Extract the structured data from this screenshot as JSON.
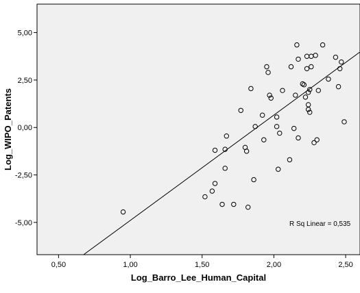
{
  "chart_data": {
    "type": "scatter",
    "xlabel": "Log_Barro_Lee_Human_Capital",
    "ylabel": "Log_WIPO_Patents",
    "xlim": [
      0.35,
      2.6
    ],
    "ylim": [
      -6.7,
      6.5
    ],
    "x_ticks": [
      {
        "value": 0.5,
        "label": "0,50"
      },
      {
        "value": 1.0,
        "label": "1,00"
      },
      {
        "value": 1.5,
        "label": "1,50"
      },
      {
        "value": 2.0,
        "label": "2,00"
      },
      {
        "value": 2.5,
        "label": "2,50"
      }
    ],
    "y_ticks": [
      {
        "value": 5.0,
        "label": "5,00"
      },
      {
        "value": 2.5,
        "label": "2,50"
      },
      {
        "value": 0.0,
        "label": "0,00"
      },
      {
        "value": -2.5,
        "label": "-2,50"
      },
      {
        "value": -5.0,
        "label": "-5,00"
      }
    ],
    "grid": false,
    "points": [
      {
        "x": 0.95,
        "y": -4.45
      },
      {
        "x": 1.52,
        "y": -3.65
      },
      {
        "x": 1.57,
        "y": -3.35
      },
      {
        "x": 1.59,
        "y": -2.95
      },
      {
        "x": 1.59,
        "y": -1.2
      },
      {
        "x": 1.64,
        "y": -4.05
      },
      {
        "x": 1.66,
        "y": -1.15
      },
      {
        "x": 1.66,
        "y": -2.15
      },
      {
        "x": 1.67,
        "y": -0.45
      },
      {
        "x": 1.72,
        "y": -4.05
      },
      {
        "x": 1.77,
        "y": 0.9
      },
      {
        "x": 1.8,
        "y": -1.05
      },
      {
        "x": 1.81,
        "y": -1.25
      },
      {
        "x": 1.82,
        "y": -4.2
      },
      {
        "x": 1.84,
        "y": 2.05
      },
      {
        "x": 1.86,
        "y": -2.75
      },
      {
        "x": 1.87,
        "y": 0.05
      },
      {
        "x": 1.92,
        "y": 0.65
      },
      {
        "x": 1.93,
        "y": -0.65
      },
      {
        "x": 1.95,
        "y": 3.2
      },
      {
        "x": 1.96,
        "y": 2.9
      },
      {
        "x": 1.97,
        "y": 1.7
      },
      {
        "x": 1.98,
        "y": 1.55
      },
      {
        "x": 2.02,
        "y": 0.55
      },
      {
        "x": 2.02,
        "y": 0.05
      },
      {
        "x": 2.03,
        "y": -2.2
      },
      {
        "x": 2.04,
        "y": -0.3
      },
      {
        "x": 2.06,
        "y": 1.95
      },
      {
        "x": 2.11,
        "y": -1.7
      },
      {
        "x": 2.12,
        "y": 3.2
      },
      {
        "x": 2.14,
        "y": -0.05
      },
      {
        "x": 2.15,
        "y": 1.7
      },
      {
        "x": 2.16,
        "y": 4.35
      },
      {
        "x": 2.17,
        "y": -0.55
      },
      {
        "x": 2.17,
        "y": 3.6
      },
      {
        "x": 2.2,
        "y": 2.3
      },
      {
        "x": 2.21,
        "y": 2.25
      },
      {
        "x": 2.22,
        "y": 1.6
      },
      {
        "x": 2.23,
        "y": 3.1
      },
      {
        "x": 2.23,
        "y": 3.75
      },
      {
        "x": 2.24,
        "y": 1.85
      },
      {
        "x": 2.24,
        "y": 1.2
      },
      {
        "x": 2.24,
        "y": 0.95
      },
      {
        "x": 2.25,
        "y": 0.8
      },
      {
        "x": 2.25,
        "y": 2.0
      },
      {
        "x": 2.26,
        "y": 3.2
      },
      {
        "x": 2.26,
        "y": 3.75
      },
      {
        "x": 2.28,
        "y": -0.8
      },
      {
        "x": 2.29,
        "y": 3.8
      },
      {
        "x": 2.3,
        "y": -0.65
      },
      {
        "x": 2.31,
        "y": 1.95
      },
      {
        "x": 2.34,
        "y": 4.35
      },
      {
        "x": 2.38,
        "y": 2.55
      },
      {
        "x": 2.43,
        "y": 3.7
      },
      {
        "x": 2.45,
        "y": 2.15
      },
      {
        "x": 2.46,
        "y": 3.1
      },
      {
        "x": 2.47,
        "y": 3.45
      },
      {
        "x": 2.49,
        "y": 0.3
      }
    ],
    "fit_line": {
      "x0": 0.35,
      "y0": -8.5,
      "x1": 2.6,
      "y1": 3.98
    },
    "annotation": "R Sq Linear = 0,535"
  }
}
